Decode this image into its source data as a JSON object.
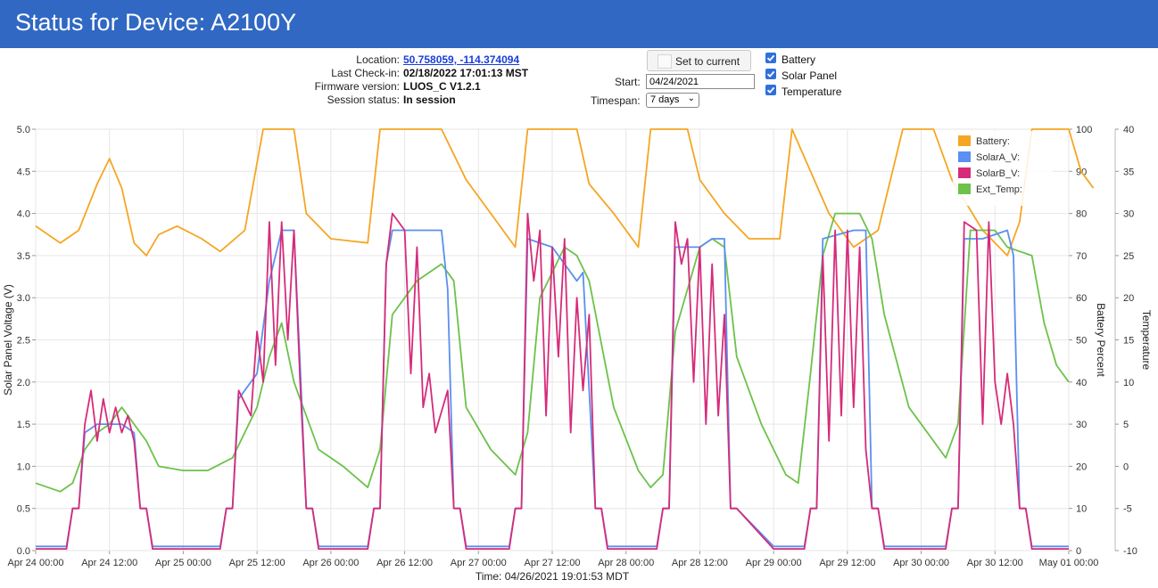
{
  "header": {
    "title": "Status for Device: A2100Y",
    "bar_color": "#3068c3"
  },
  "info": {
    "location_label": "Location:",
    "location_value": "50.758059, -114.374094",
    "checkin_label": "Last Check-in:",
    "checkin_value": "02/18/2022 17:01:13 MST",
    "firmware_label": "Firmware version:",
    "firmware_value": "LUOS_C V1.2.1",
    "session_label": "Session status:",
    "session_value": "In session"
  },
  "controls": {
    "set_current_label": "Set to current",
    "start_label": "Start:",
    "start_value": "04/24/2021",
    "timespan_label": "Timespan:",
    "timespan_value": "7 days",
    "checkboxes": [
      {
        "label": "Battery",
        "checked": true
      },
      {
        "label": "Solar Panel",
        "checked": true
      },
      {
        "label": "Temperature",
        "checked": true
      }
    ]
  },
  "chart_data": {
    "type": "line",
    "title": "",
    "xlabel": "Time: 04/26/2021 19:01:53 MDT",
    "x_tick_labels": [
      "Apr 24 00:00",
      "Apr 24 12:00",
      "Apr 25 00:00",
      "Apr 25 12:00",
      "Apr 26 00:00",
      "Apr 26 12:00",
      "Apr 27 00:00",
      "Apr 27 12:00",
      "Apr 28 00:00",
      "Apr 28 12:00",
      "Apr 29 00:00",
      "Apr 29 12:00",
      "Apr 30 00:00",
      "Apr 30 12:00",
      "May 01 00:00"
    ],
    "x_range_hours": [
      0,
      168
    ],
    "y_axes": [
      {
        "id": "voltage",
        "label": "Solar Panel Voltage (V)",
        "range": [
          0,
          5
        ],
        "ticks": [
          "0.0",
          "0.5",
          "1.0",
          "1.5",
          "2.0",
          "2.5",
          "3.0",
          "3.5",
          "4.0",
          "4.5",
          "5.0"
        ]
      },
      {
        "id": "battery",
        "label": "Battery Percent",
        "range": [
          0,
          100
        ],
        "ticks": [
          "0",
          "10",
          "20",
          "30",
          "40",
          "50",
          "60",
          "70",
          "80",
          "90",
          "100"
        ]
      },
      {
        "id": "temp",
        "label": "Temperature",
        "range": [
          -10,
          40
        ],
        "ticks": [
          "-10",
          "-5",
          "0",
          "5",
          "10",
          "15",
          "20",
          "25",
          "30",
          "35",
          "40"
        ]
      }
    ],
    "legend_position": "top-right",
    "grid": true,
    "series": [
      {
        "name": "Battery:",
        "axis": "battery",
        "color": "#f5a623",
        "points": [
          [
            0,
            77
          ],
          [
            4,
            73
          ],
          [
            7,
            76
          ],
          [
            10,
            87
          ],
          [
            12,
            93
          ],
          [
            14,
            86
          ],
          [
            16,
            73
          ],
          [
            18,
            70
          ],
          [
            20,
            75
          ],
          [
            23,
            77
          ],
          [
            27,
            74
          ],
          [
            30,
            71
          ],
          [
            34,
            76
          ],
          [
            37,
            100
          ],
          [
            42,
            100
          ],
          [
            44,
            80
          ],
          [
            48,
            74
          ],
          [
            54,
            73
          ],
          [
            56,
            100
          ],
          [
            66,
            100
          ],
          [
            70,
            88
          ],
          [
            74,
            80
          ],
          [
            78,
            72
          ],
          [
            80,
            100
          ],
          [
            88,
            100
          ],
          [
            90,
            87
          ],
          [
            94,
            80
          ],
          [
            98,
            72
          ],
          [
            100,
            100
          ],
          [
            106,
            100
          ],
          [
            108,
            88
          ],
          [
            112,
            80
          ],
          [
            116,
            74
          ],
          [
            119,
            74
          ],
          [
            121,
            74
          ],
          [
            123,
            100
          ],
          [
            129,
            80
          ],
          [
            133,
            72
          ],
          [
            137,
            76
          ],
          [
            141,
            100
          ],
          [
            146,
            100
          ],
          [
            149,
            88
          ],
          [
            154,
            76
          ],
          [
            158,
            70
          ],
          [
            160,
            78
          ],
          [
            162,
            100
          ],
          [
            168,
            100
          ],
          [
            170,
            90
          ],
          [
            172,
            86
          ]
        ]
      },
      {
        "name": "SolarA_V:",
        "axis": "voltage",
        "color": "#5b8ff0",
        "points": [
          [
            0,
            0.05
          ],
          [
            5,
            0.05
          ],
          [
            6,
            0.5
          ],
          [
            7,
            0.5
          ],
          [
            8,
            1.4
          ],
          [
            10,
            1.5
          ],
          [
            12,
            1.5
          ],
          [
            14,
            1.5
          ],
          [
            16,
            1.4
          ],
          [
            17,
            0.5
          ],
          [
            18,
            0.5
          ],
          [
            19,
            0.05
          ],
          [
            30,
            0.05
          ],
          [
            31,
            0.5
          ],
          [
            32,
            0.5
          ],
          [
            33,
            1.8
          ],
          [
            36,
            2.1
          ],
          [
            38,
            3.2
          ],
          [
            40,
            3.8
          ],
          [
            42,
            3.8
          ],
          [
            43,
            2.2
          ],
          [
            44,
            0.5
          ],
          [
            45,
            0.5
          ],
          [
            46,
            0.05
          ],
          [
            54,
            0.05
          ],
          [
            55,
            0.5
          ],
          [
            56,
            0.5
          ],
          [
            57,
            3.4
          ],
          [
            58,
            3.8
          ],
          [
            66,
            3.8
          ],
          [
            67,
            3.1
          ],
          [
            68,
            0.5
          ],
          [
            69,
            0.5
          ],
          [
            70,
            0.05
          ],
          [
            77,
            0.05
          ],
          [
            78,
            0.5
          ],
          [
            79,
            0.5
          ],
          [
            80,
            3.7
          ],
          [
            84,
            3.6
          ],
          [
            88,
            3.2
          ],
          [
            89,
            3.3
          ],
          [
            91,
            0.5
          ],
          [
            92,
            0.5
          ],
          [
            93,
            0.05
          ],
          [
            101,
            0.05
          ],
          [
            102,
            0.5
          ],
          [
            103,
            0.5
          ],
          [
            104,
            3.6
          ],
          [
            108,
            3.6
          ],
          [
            110,
            3.7
          ],
          [
            112,
            3.7
          ],
          [
            113,
            0.5
          ],
          [
            114,
            0.5
          ],
          [
            120,
            0.05
          ],
          [
            125,
            0.05
          ],
          [
            126,
            0.5
          ],
          [
            127,
            0.5
          ],
          [
            128,
            3.7
          ],
          [
            133,
            3.8
          ],
          [
            135,
            3.8
          ],
          [
            136,
            0.5
          ],
          [
            137,
            0.5
          ],
          [
            138,
            0.05
          ],
          [
            148,
            0.05
          ],
          [
            149,
            0.5
          ],
          [
            150,
            0.5
          ],
          [
            151,
            3.7
          ],
          [
            154,
            3.7
          ],
          [
            158,
            3.8
          ],
          [
            159,
            3.5
          ],
          [
            160,
            0.5
          ],
          [
            161,
            0.5
          ],
          [
            162,
            0.05
          ],
          [
            168,
            0.05
          ]
        ]
      },
      {
        "name": "SolarB_V:",
        "axis": "voltage",
        "color": "#d62b7a",
        "points": [
          [
            0,
            0.02
          ],
          [
            5,
            0.02
          ],
          [
            6,
            0.5
          ],
          [
            7,
            0.5
          ],
          [
            8,
            1.5
          ],
          [
            9,
            1.9
          ],
          [
            10,
            1.3
          ],
          [
            11,
            1.8
          ],
          [
            12,
            1.4
          ],
          [
            13,
            1.7
          ],
          [
            14,
            1.4
          ],
          [
            15,
            1.6
          ],
          [
            16,
            1.3
          ],
          [
            17,
            0.5
          ],
          [
            18,
            0.5
          ],
          [
            19,
            0.02
          ],
          [
            30,
            0.02
          ],
          [
            31,
            0.5
          ],
          [
            32,
            0.5
          ],
          [
            33,
            1.9
          ],
          [
            35,
            1.6
          ],
          [
            36,
            2.6
          ],
          [
            37,
            2.0
          ],
          [
            38,
            3.9
          ],
          [
            39,
            2.2
          ],
          [
            40,
            3.9
          ],
          [
            41,
            2.5
          ],
          [
            42,
            3.8
          ],
          [
            43,
            2.0
          ],
          [
            44,
            0.5
          ],
          [
            45,
            0.5
          ],
          [
            46,
            0.02
          ],
          [
            54,
            0.02
          ],
          [
            55,
            0.5
          ],
          [
            56,
            0.5
          ],
          [
            57,
            3.4
          ],
          [
            58,
            4.0
          ],
          [
            60,
            3.8
          ],
          [
            61,
            2.1
          ],
          [
            62,
            3.6
          ],
          [
            63,
            1.7
          ],
          [
            64,
            2.1
          ],
          [
            65,
            1.4
          ],
          [
            67,
            1.9
          ],
          [
            68,
            0.5
          ],
          [
            69,
            0.5
          ],
          [
            70,
            0.02
          ],
          [
            77,
            0.02
          ],
          [
            78,
            0.5
          ],
          [
            79,
            0.5
          ],
          [
            80,
            4.0
          ],
          [
            81,
            3.2
          ],
          [
            82,
            3.8
          ],
          [
            83,
            1.6
          ],
          [
            84,
            3.6
          ],
          [
            85,
            2.3
          ],
          [
            86,
            3.7
          ],
          [
            87,
            1.4
          ],
          [
            88,
            3.0
          ],
          [
            89,
            1.9
          ],
          [
            90,
            2.8
          ],
          [
            91,
            0.5
          ],
          [
            92,
            0.5
          ],
          [
            93,
            0.02
          ],
          [
            101,
            0.02
          ],
          [
            102,
            0.5
          ],
          [
            103,
            0.5
          ],
          [
            104,
            3.9
          ],
          [
            105,
            3.4
          ],
          [
            106,
            3.7
          ],
          [
            107,
            2.0
          ],
          [
            108,
            3.6
          ],
          [
            109,
            1.5
          ],
          [
            110,
            3.4
          ],
          [
            111,
            1.6
          ],
          [
            112,
            2.8
          ],
          [
            113,
            0.5
          ],
          [
            114,
            0.5
          ],
          [
            120,
            0.02
          ],
          [
            125,
            0.02
          ],
          [
            126,
            0.5
          ],
          [
            127,
            0.5
          ],
          [
            128,
            3.5
          ],
          [
            129,
            1.3
          ],
          [
            130,
            3.8
          ],
          [
            131,
            1.6
          ],
          [
            132,
            3.8
          ],
          [
            133,
            1.7
          ],
          [
            134,
            3.6
          ],
          [
            135,
            1.2
          ],
          [
            136,
            0.5
          ],
          [
            137,
            0.5
          ],
          [
            138,
            0.02
          ],
          [
            148,
            0.02
          ],
          [
            149,
            0.5
          ],
          [
            150,
            0.5
          ],
          [
            151,
            3.9
          ],
          [
            153,
            3.8
          ],
          [
            154,
            1.5
          ],
          [
            155,
            3.9
          ],
          [
            156,
            2.0
          ],
          [
            157,
            1.5
          ],
          [
            158,
            2.1
          ],
          [
            159,
            1.5
          ],
          [
            160,
            0.5
          ],
          [
            161,
            0.5
          ],
          [
            162,
            0.02
          ],
          [
            168,
            0.02
          ]
        ]
      },
      {
        "name": "Ext_Temp:",
        "axis": "temp",
        "color": "#6cc24a",
        "points": [
          [
            0,
            -2
          ],
          [
            4,
            -3
          ],
          [
            6,
            -2
          ],
          [
            8,
            2
          ],
          [
            10,
            4
          ],
          [
            12,
            5
          ],
          [
            14,
            7
          ],
          [
            16,
            5
          ],
          [
            18,
            3
          ],
          [
            20,
            0
          ],
          [
            24,
            -0.5
          ],
          [
            28,
            -0.5
          ],
          [
            32,
            1
          ],
          [
            36,
            7
          ],
          [
            38,
            13
          ],
          [
            40,
            17
          ],
          [
            42,
            10
          ],
          [
            46,
            2
          ],
          [
            50,
            0
          ],
          [
            54,
            -2.5
          ],
          [
            56,
            2
          ],
          [
            58,
            18
          ],
          [
            62,
            22
          ],
          [
            66,
            24
          ],
          [
            68,
            22
          ],
          [
            70,
            7
          ],
          [
            74,
            2
          ],
          [
            78,
            -1
          ],
          [
            80,
            4
          ],
          [
            82,
            20
          ],
          [
            86,
            26
          ],
          [
            88,
            25
          ],
          [
            90,
            22
          ],
          [
            94,
            7
          ],
          [
            98,
            -0.5
          ],
          [
            100,
            -2.5
          ],
          [
            102,
            -1
          ],
          [
            104,
            16
          ],
          [
            108,
            26
          ],
          [
            110,
            27
          ],
          [
            112,
            26
          ],
          [
            114,
            13
          ],
          [
            118,
            5
          ],
          [
            122,
            -1
          ],
          [
            124,
            -2
          ],
          [
            126,
            11
          ],
          [
            128,
            25
          ],
          [
            130,
            30
          ],
          [
            134,
            30
          ],
          [
            136,
            27
          ],
          [
            138,
            18
          ],
          [
            142,
            7
          ],
          [
            146,
            3
          ],
          [
            148,
            1
          ],
          [
            150,
            5
          ],
          [
            152,
            28
          ],
          [
            156,
            28
          ],
          [
            158,
            26
          ],
          [
            162,
            25
          ],
          [
            164,
            17
          ],
          [
            166,
            12
          ],
          [
            168,
            10
          ]
        ]
      }
    ]
  }
}
